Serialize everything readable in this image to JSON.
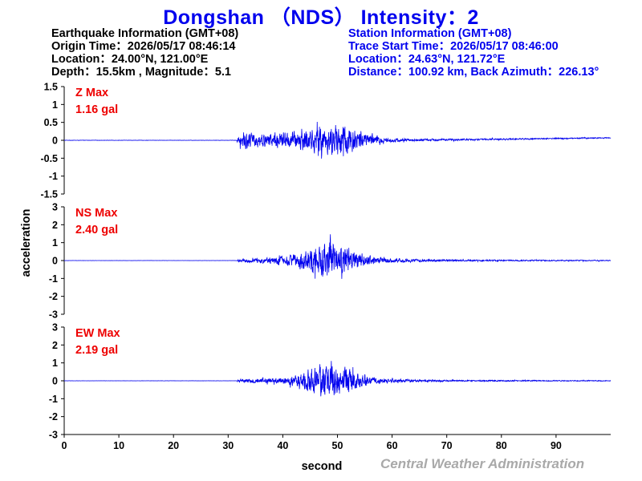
{
  "page": {
    "title": "Dongshan （NDS） Intensity：2",
    "credit": "Central Weather Administration"
  },
  "earthquake_info": {
    "header": "Earthquake Information  (GMT+08)",
    "origin_time": "Origin Time：2026/05/17 08:46:14",
    "location": "Location：24.00°N, 121.00°E",
    "depth_magnitude": "Depth：15.5km , Magnitude：5.1"
  },
  "station_info": {
    "header": "Station Information  (GMT+08)",
    "trace_start": "Trace Start Time：2026/05/17 08:46:00",
    "location": "Location：24.63°N, 121.72°E",
    "distance": "Distance：100.92 km, Back Azimuth：226.13°"
  },
  "colors": {
    "title": "#0000ee",
    "trace": "#0000ee",
    "max_label": "#ee0000",
    "credit": "#a9a9a9",
    "axis": "#000000"
  },
  "chart_data": {
    "type": "line",
    "xlabel": "second",
    "ylabel": "acceleration",
    "xlim": [
      0,
      100
    ],
    "x_ticks": [
      0,
      10,
      20,
      30,
      40,
      50,
      60,
      70,
      80,
      90
    ],
    "x_tick_labels": [
      "0",
      "10",
      "20",
      "30",
      "40",
      "50",
      "60",
      "70",
      "80",
      "90"
    ],
    "grid": false,
    "panels": [
      {
        "name": "Z",
        "max_label": "Z Max",
        "max_value_label": "1.16 gal",
        "max_value": 1.16,
        "ylim": [
          -1.5,
          1.5
        ],
        "y_ticks": [
          1.5,
          1,
          0.5,
          0,
          -0.5,
          -1,
          -1.5
        ],
        "y_tick_labels": [
          "1.5",
          "1",
          "0.5",
          "0",
          "-0.5",
          "-1",
          "-1.5"
        ],
        "envelope": [
          [
            0,
            0.01
          ],
          [
            31.5,
            0.01
          ],
          [
            32,
            0.35
          ],
          [
            33,
            0.55
          ],
          [
            35,
            0.45
          ],
          [
            37,
            0.4
          ],
          [
            40,
            0.5
          ],
          [
            43,
            0.6
          ],
          [
            45,
            0.7
          ],
          [
            47,
            0.8
          ],
          [
            49,
            0.85
          ],
          [
            51,
            1.16
          ],
          [
            53,
            0.7
          ],
          [
            55,
            0.45
          ],
          [
            57,
            0.3
          ],
          [
            60,
            0.12
          ],
          [
            65,
            0.07
          ],
          [
            75,
            0.05
          ],
          [
            90,
            0.04
          ],
          [
            100,
            0.03
          ]
        ],
        "drift": [
          [
            0,
            0
          ],
          [
            60,
            0
          ],
          [
            80,
            0.03
          ],
          [
            100,
            0.07
          ]
        ]
      },
      {
        "name": "NS",
        "max_label": "NS Max",
        "max_value_label": "2.40 gal",
        "max_value": 2.4,
        "ylim": [
          -3,
          3
        ],
        "y_ticks": [
          3,
          2,
          1,
          0,
          -1,
          -2,
          -3
        ],
        "y_tick_labels": [
          "3",
          "2",
          "1",
          "0",
          "-1",
          "-2",
          "-3"
        ],
        "envelope": [
          [
            0,
            0.01
          ],
          [
            31.5,
            0.01
          ],
          [
            32,
            0.18
          ],
          [
            36,
            0.3
          ],
          [
            40,
            0.5
          ],
          [
            43,
            1.0
          ],
          [
            45,
            1.7
          ],
          [
            47,
            2.0
          ],
          [
            48.5,
            2.4
          ],
          [
            50,
            1.8
          ],
          [
            52,
            1.5
          ],
          [
            54,
            0.9
          ],
          [
            56,
            0.6
          ],
          [
            58,
            0.35
          ],
          [
            62,
            0.2
          ],
          [
            70,
            0.12
          ],
          [
            85,
            0.08
          ],
          [
            100,
            0.06
          ]
        ],
        "drift": [
          [
            0,
            0
          ],
          [
            100,
            0
          ]
        ]
      },
      {
        "name": "EW",
        "max_label": "EW Max",
        "max_value_label": "2.19 gal",
        "max_value": 2.19,
        "ylim": [
          -3,
          3
        ],
        "y_ticks": [
          3,
          2,
          1,
          0,
          -1,
          -2,
          -3
        ],
        "y_tick_labels": [
          "3",
          "2",
          "1",
          "0",
          "-1",
          "-2",
          "-3"
        ],
        "envelope": [
          [
            0,
            0.01
          ],
          [
            31.5,
            0.01
          ],
          [
            32,
            0.25
          ],
          [
            36,
            0.35
          ],
          [
            40,
            0.45
          ],
          [
            43,
            0.9
          ],
          [
            45,
            1.6
          ],
          [
            47,
            2.19
          ],
          [
            48.5,
            1.9
          ],
          [
            50,
            1.7
          ],
          [
            52,
            1.6
          ],
          [
            54,
            0.9
          ],
          [
            56,
            0.5
          ],
          [
            58,
            0.3
          ],
          [
            62,
            0.18
          ],
          [
            70,
            0.1
          ],
          [
            85,
            0.07
          ],
          [
            100,
            0.05
          ]
        ],
        "drift": [
          [
            0,
            0
          ],
          [
            100,
            0
          ]
        ]
      }
    ]
  }
}
